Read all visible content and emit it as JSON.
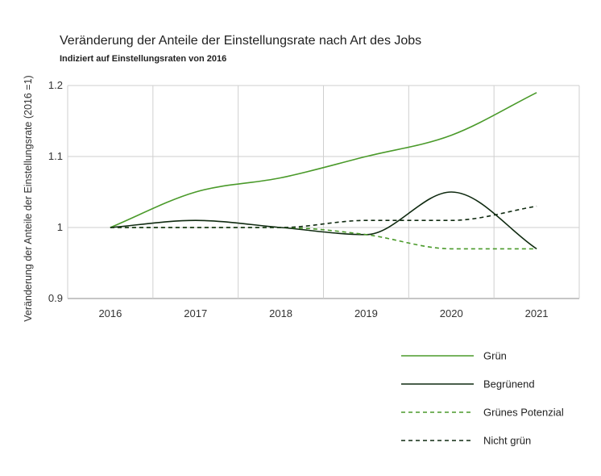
{
  "chart_data": {
    "type": "line",
    "title": "Veränderung der Anteile der Einstellungsrate nach Art des Jobs",
    "subtitle": "Indiziert auf Einstellungsraten von 2016",
    "ylabel": "Veränderung der Anteile der Einstellungsrate (2016 =1)",
    "xlabel": "",
    "x": [
      "2016",
      "2017",
      "2018",
      "2019",
      "2020",
      "2021"
    ],
    "ylim": [
      0.9,
      1.2
    ],
    "yticks": [
      "0.9",
      "1",
      "1.1",
      "1.2"
    ],
    "grid": true,
    "legend_position": "bottom-right",
    "series": [
      {
        "name": "Grün",
        "color": "#4a9a2a",
        "dash": false,
        "values": [
          1.0,
          1.05,
          1.07,
          1.1,
          1.13,
          1.19
        ]
      },
      {
        "name": "Begrünend",
        "color": "#0f2a10",
        "dash": false,
        "values": [
          1.0,
          1.01,
          1.0,
          0.99,
          1.05,
          0.97
        ]
      },
      {
        "name": "Grünes Potenzial",
        "color": "#4a9a2a",
        "dash": true,
        "values": [
          1.0,
          1.0,
          1.0,
          0.99,
          0.97,
          0.97
        ]
      },
      {
        "name": "Nicht grün",
        "color": "#0f2a10",
        "dash": true,
        "values": [
          1.0,
          1.0,
          1.0,
          1.01,
          1.01,
          1.03
        ]
      }
    ]
  }
}
